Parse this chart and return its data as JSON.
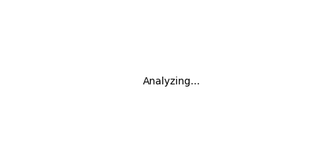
{
  "bg_color": "#ffffff",
  "line_color": "#1a1a1a",
  "n_color": "#1a4db0",
  "s_color": "#c8a000",
  "lw": 1.5,
  "lw2": 2.5,
  "figw": 4.71,
  "figh": 2.28,
  "dpi": 100,
  "font_size": 9.5
}
